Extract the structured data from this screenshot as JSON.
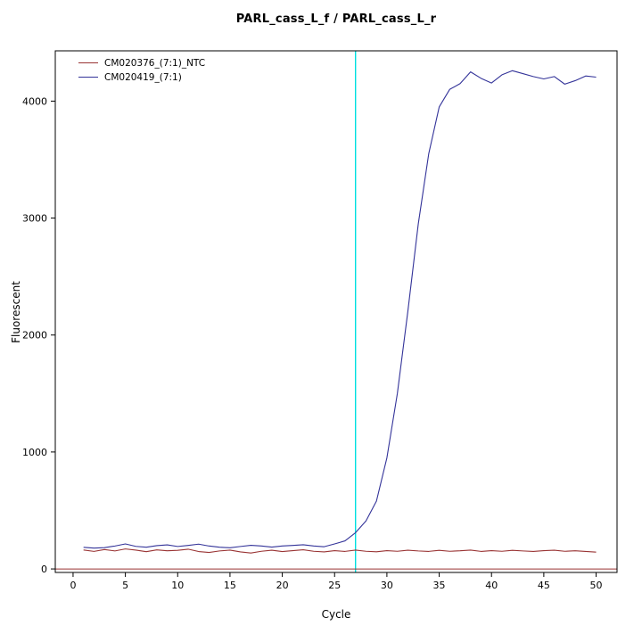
{
  "chart_data": {
    "type": "line",
    "title": "PARL_cass_L_f / PARL_cass_L_r",
    "xlabel": "Cycle",
    "ylabel": "Fluorescent",
    "xlim": [
      -1.7,
      52
    ],
    "ylim": [
      -30,
      4430
    ],
    "xticks": [
      0,
      5,
      10,
      15,
      20,
      25,
      30,
      35,
      40,
      45,
      50
    ],
    "yticks": [
      0,
      1000,
      2000,
      3000,
      4000
    ],
    "grid": false,
    "legend_position": "top-left",
    "threshold_line_y": 0,
    "threshold_line_color": "#993333",
    "ct_line_x": 27,
    "ct_line_color": "#00e0e0",
    "x": [
      1,
      2,
      3,
      4,
      5,
      6,
      7,
      8,
      9,
      10,
      11,
      12,
      13,
      14,
      15,
      16,
      17,
      18,
      19,
      20,
      21,
      22,
      23,
      24,
      25,
      26,
      27,
      28,
      29,
      30,
      31,
      32,
      33,
      34,
      35,
      36,
      37,
      38,
      39,
      40,
      41,
      42,
      43,
      44,
      45,
      46,
      47,
      48,
      49,
      50
    ],
    "series": [
      {
        "name": "CM020376_(7:1)_NTC",
        "color": "#993333",
        "values": [
          162,
          150,
          166,
          154,
          171,
          161,
          148,
          163,
          155,
          159,
          169,
          149,
          141,
          154,
          161,
          146,
          136,
          151,
          160,
          149,
          156,
          164,
          151,
          146,
          156,
          150,
          161,
          151,
          147,
          156,
          151,
          160,
          154,
          150,
          159,
          151,
          155,
          161,
          150,
          156,
          151,
          159,
          154,
          150,
          156,
          160,
          151,
          155,
          150,
          144
        ]
      },
      {
        "name": "CM020419_(7:1)",
        "color": "#333399",
        "values": [
          185,
          178,
          182,
          196,
          214,
          193,
          186,
          199,
          206,
          192,
          201,
          212,
          196,
          186,
          181,
          192,
          202,
          196,
          187,
          196,
          201,
          207,
          196,
          190,
          214,
          240,
          310,
          410,
          580,
          950,
          1500,
          2200,
          2950,
          3550,
          3950,
          4100,
          4150,
          4250,
          4195,
          4155,
          4225,
          4260,
          4235,
          4210,
          4190,
          4210,
          4145,
          4175,
          4215,
          4205
        ]
      }
    ]
  }
}
